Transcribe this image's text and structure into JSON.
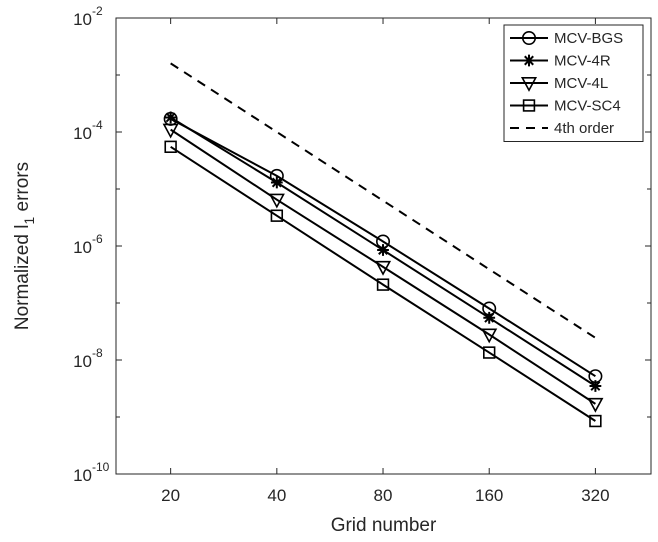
{
  "chart_data": {
    "type": "line",
    "xlabel": "Grid number",
    "ylabel": "Normalized l",
    "ylabel_subscript": "1",
    "ylabel_suffix": "errors",
    "x_scale": "log2",
    "y_scale": "log10",
    "x_ticks": [
      20,
      40,
      80,
      160,
      320
    ],
    "x_tick_labels": [
      "20",
      "40",
      "80",
      "160",
      "320"
    ],
    "xlim": [
      14,
      460
    ],
    "ylim": [
      1e-10,
      0.01
    ],
    "y_ticks": [
      {
        "value": 1e-10,
        "base": "10",
        "exp": "-10"
      },
      {
        "value": 1e-08,
        "base": "10",
        "exp": "-8"
      },
      {
        "value": 1e-06,
        "base": "10",
        "exp": "-6"
      },
      {
        "value": 0.0001,
        "base": "10",
        "exp": "-4"
      },
      {
        "value": 0.01,
        "base": "10",
        "exp": "-2"
      }
    ],
    "legend_position": "top-right",
    "grid": false,
    "x": [
      20,
      40,
      80,
      160,
      320
    ],
    "series": [
      {
        "name": "MCV-BGS",
        "marker": "circle",
        "line": "solid",
        "values": [
          0.00017,
          1.7e-05,
          1.2e-06,
          8e-08,
          5.2e-09
        ]
      },
      {
        "name": "MCV-4R",
        "marker": "asterisk",
        "line": "solid",
        "values": [
          0.00018,
          1.3e-05,
          8.5e-07,
          5.5e-08,
          3.5e-09
        ]
      },
      {
        "name": "MCV-4L",
        "marker": "triangle-down",
        "line": "solid",
        "values": [
          0.00011,
          6.5e-06,
          4.3e-07,
          2.8e-08,
          1.7e-09
        ]
      },
      {
        "name": "MCV-SC4",
        "marker": "square",
        "line": "solid",
        "values": [
          5.5e-05,
          3.4e-06,
          2.1e-07,
          1.35e-08,
          8.5e-10
        ]
      },
      {
        "name": "4th order",
        "marker": "none",
        "line": "dashed",
        "values": [
          0.0016,
          0.0001,
          6.25e-06,
          3.9e-07,
          2.45e-08
        ]
      }
    ],
    "colors": {
      "lines": "#000000",
      "axes": "#262626",
      "background": "#ffffff"
    }
  }
}
